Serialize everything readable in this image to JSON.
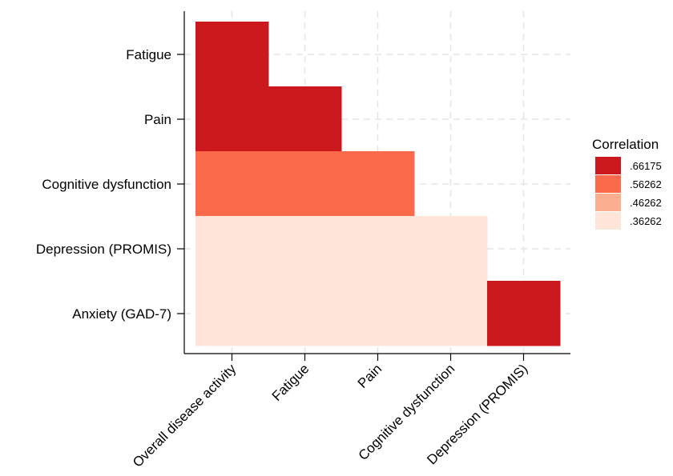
{
  "chart_data": {
    "type": "heatmap",
    "title": "",
    "xlabel": "",
    "ylabel": "",
    "x_categories": [
      "Overall disease activity",
      "Fatigue",
      "Pain",
      "Cognitive dysfunction",
      "Depression (PROMIS)"
    ],
    "y_categories": [
      "Fatigue",
      "Pain",
      "Cognitive dysfunction",
      "Depression (PROMIS)",
      "Anxiety (GAD-7)"
    ],
    "cells": [
      {
        "x": "Overall disease activity",
        "y": "Fatigue",
        "bin": ".66175"
      },
      {
        "x": "Overall disease activity",
        "y": "Pain",
        "bin": ".66175"
      },
      {
        "x": "Fatigue",
        "y": "Pain",
        "bin": ".66175"
      },
      {
        "x": "Overall disease activity",
        "y": "Cognitive dysfunction",
        "bin": ".56262"
      },
      {
        "x": "Fatigue",
        "y": "Cognitive dysfunction",
        "bin": ".56262"
      },
      {
        "x": "Pain",
        "y": "Cognitive dysfunction",
        "bin": ".56262"
      },
      {
        "x": "Overall disease activity",
        "y": "Depression (PROMIS)",
        "bin": ".36262"
      },
      {
        "x": "Fatigue",
        "y": "Depression (PROMIS)",
        "bin": ".36262"
      },
      {
        "x": "Pain",
        "y": "Depression (PROMIS)",
        "bin": ".36262"
      },
      {
        "x": "Cognitive dysfunction",
        "y": "Depression (PROMIS)",
        "bin": ".36262"
      },
      {
        "x": "Overall disease activity",
        "y": "Anxiety (GAD-7)",
        "bin": ".36262"
      },
      {
        "x": "Fatigue",
        "y": "Anxiety (GAD-7)",
        "bin": ".36262"
      },
      {
        "x": "Pain",
        "y": "Anxiety (GAD-7)",
        "bin": ".36262"
      },
      {
        "x": "Cognitive dysfunction",
        "y": "Anxiety (GAD-7)",
        "bin": ".36262"
      },
      {
        "x": "Depression (PROMIS)",
        "y": "Anxiety (GAD-7)",
        "bin": ".66175"
      }
    ],
    "legend": {
      "title": "Correlation",
      "position": "right",
      "items": [
        {
          "label": ".66175",
          "color": "#cb181d"
        },
        {
          "label": ".56262",
          "color": "#fb6a4a"
        },
        {
          "label": ".46262",
          "color": "#fcae91"
        },
        {
          "label": ".36262",
          "color": "#fee5d9"
        }
      ]
    },
    "grid": true
  }
}
